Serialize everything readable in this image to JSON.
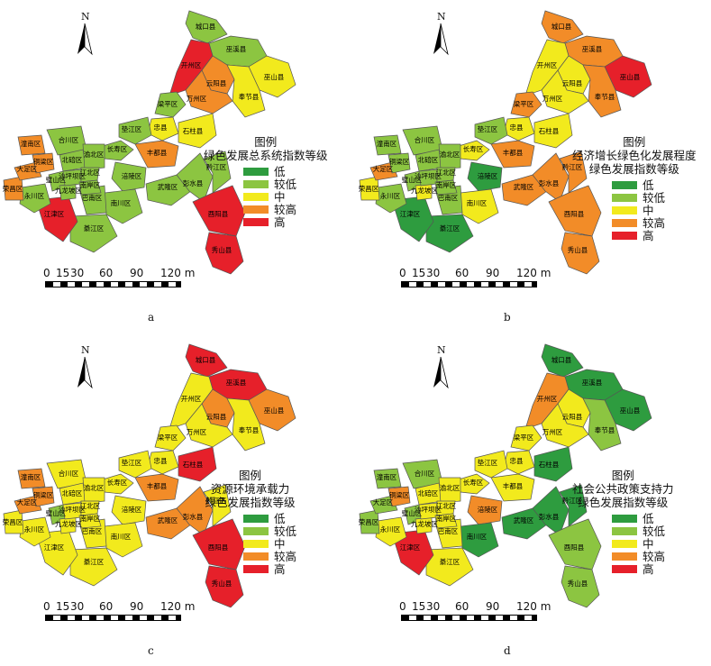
{
  "colors": {
    "low": "#2e9c3f",
    "lower": "#8cc541",
    "mid": "#f2ea1d",
    "higher": "#f28c28",
    "high": "#e6202a"
  },
  "north_label": "N",
  "scale": {
    "ticks": [
      "0",
      "15",
      "30",
      "60",
      "90",
      "120 m"
    ]
  },
  "legend_levels": [
    "低",
    "较低",
    "中",
    "较高",
    "高"
  ],
  "panels": [
    {
      "id": "a",
      "caption": "a",
      "legend_title": [
        "图例",
        "绿色发展总系统指数等级"
      ]
    },
    {
      "id": "b",
      "caption": "b",
      "legend_title": [
        "图例",
        "经济增长绿色化发展程度",
        "绿色发展指数等级"
      ]
    },
    {
      "id": "c",
      "caption": "c",
      "legend_title": [
        "图例",
        "资源环境承载力",
        "绿色发展指数等级"
      ]
    },
    {
      "id": "d",
      "caption": "d",
      "legend_title": [
        "图例",
        "社会公共政策支持力",
        "绿色发展指数等级"
      ]
    }
  ],
  "districts": [
    "城口县",
    "巫溪县",
    "开州区",
    "云阳县",
    "巫山县",
    "奉节县",
    "万州区",
    "梁平区",
    "忠县",
    "石柱县",
    "垫江区",
    "长寿区",
    "丰都县",
    "涪陵区",
    "武隆区",
    "彭水县",
    "黔江区",
    "酉阳县",
    "秀山县",
    "南川区",
    "綦江区",
    "江津区",
    "巴南区",
    "永川区",
    "璧山区",
    "九龙坡区",
    "荣昌区",
    "大足区",
    "铜梁区",
    "潼南区",
    "合川区",
    "北碚区",
    "渝北区",
    "沙坪坝区",
    "江北区",
    "南岸区"
  ],
  "levels_by_panel": {
    "a": [
      "lower",
      "lower",
      "high",
      "higher",
      "mid",
      "mid",
      "higher",
      "lower",
      "mid",
      "mid",
      "lower",
      "lower",
      "higher",
      "lower",
      "lower",
      "lower",
      "lower",
      "high",
      "high",
      "lower",
      "lower",
      "high",
      "lower",
      "lower",
      "lower",
      "lower",
      "higher",
      "higher",
      "higher",
      "higher",
      "lower",
      "lower",
      "lower",
      "lower",
      "lower",
      "lower"
    ],
    "b": [
      "higher",
      "higher",
      "mid",
      "mid",
      "high",
      "higher",
      "mid",
      "higher",
      "mid",
      "mid",
      "lower",
      "mid",
      "higher",
      "low",
      "higher",
      "higher",
      "higher",
      "higher",
      "higher",
      "mid",
      "low",
      "low",
      "lower",
      "lower",
      "lower",
      "mid",
      "mid",
      "higher",
      "lower",
      "lower",
      "lower",
      "lower",
      "lower",
      "lower",
      "lower",
      "lower"
    ],
    "c": [
      "high",
      "high",
      "mid",
      "higher",
      "higher",
      "mid",
      "mid",
      "mid",
      "mid",
      "high",
      "mid",
      "mid",
      "higher",
      "mid",
      "higher",
      "higher",
      "mid",
      "high",
      "high",
      "mid",
      "mid",
      "mid",
      "mid",
      "mid",
      "lower",
      "mid",
      "mid",
      "higher",
      "higher",
      "higher",
      "mid",
      "mid",
      "mid",
      "mid",
      "mid",
      "mid"
    ],
    "d": [
      "low",
      "low",
      "higher",
      "mid",
      "low",
      "lower",
      "mid",
      "mid",
      "mid",
      "low",
      "mid",
      "mid",
      "mid",
      "higher",
      "low",
      "low",
      "low",
      "lower",
      "lower",
      "low",
      "mid",
      "high",
      "mid",
      "mid",
      "lower",
      "mid",
      "lower",
      "lower",
      "higher",
      "lower",
      "lower",
      "mid",
      "mid",
      "mid",
      "mid",
      "mid"
    ]
  }
}
